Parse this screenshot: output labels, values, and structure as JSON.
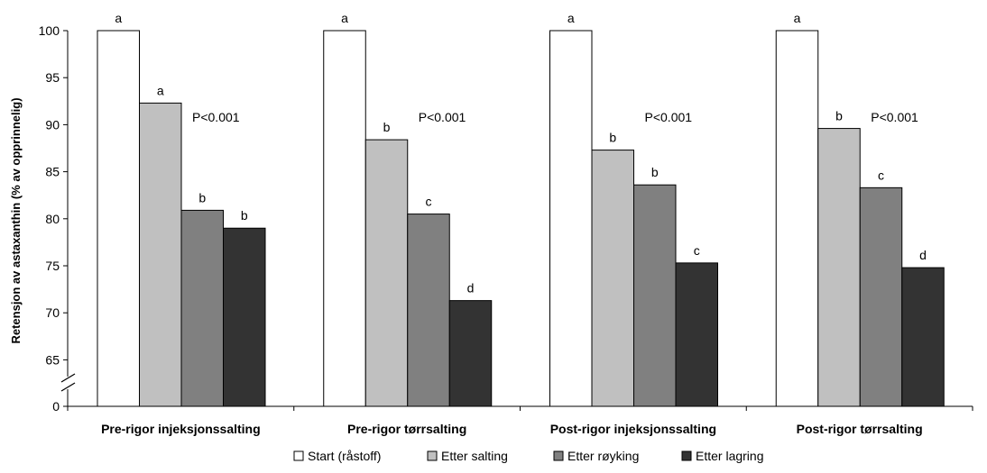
{
  "chart_data": {
    "type": "bar",
    "ylabel": "Retensjon av astaxanthin (% av opprinnelig)",
    "ylim": [
      60,
      100
    ],
    "y_axis_break": true,
    "yticks": [
      "0",
      "65",
      "70",
      "75",
      "80",
      "85",
      "90",
      "95",
      "100"
    ],
    "grid": false,
    "legend_position": "bottom",
    "categories": [
      "Pre-rigor injeksjonssalting",
      "Pre-rigor tørrsalting",
      "Post-rigor injeksjonssalting",
      "Post-rigor tørrsalting"
    ],
    "series": [
      {
        "name": "Start (råstoff)",
        "color": "#ffffff",
        "values": [
          100,
          100,
          100,
          100
        ],
        "letters": [
          "a",
          "a",
          "a",
          "a"
        ]
      },
      {
        "name": "Etter salting",
        "color": "#c0c0c0",
        "values": [
          92.3,
          88.4,
          87.3,
          89.6
        ],
        "letters": [
          "a",
          "b",
          "b",
          "b"
        ]
      },
      {
        "name": "Etter røyking",
        "color": "#808080",
        "values": [
          80.9,
          80.5,
          83.6,
          83.3
        ],
        "letters": [
          "b",
          "c",
          "b",
          "c"
        ]
      },
      {
        "name": "Etter lagring",
        "color": "#333333",
        "values": [
          79.0,
          71.3,
          75.3,
          74.8
        ],
        "letters": [
          "b",
          "d",
          "c",
          "d"
        ]
      }
    ],
    "annotations": [
      "P<0.001",
      "P<0.001",
      "P<0.001",
      "P<0.001"
    ]
  }
}
